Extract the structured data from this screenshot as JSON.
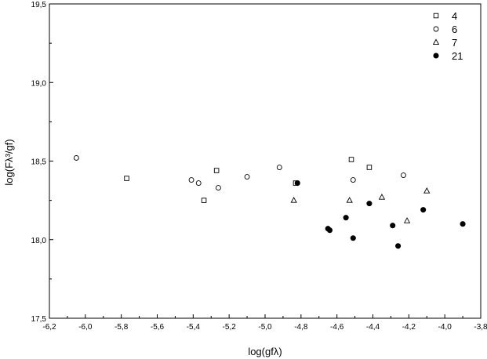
{
  "chart_data": {
    "type": "scatter",
    "xlabel": "log(gfλ)",
    "ylabel": "log(Fλ³/gf)",
    "xlim": [
      -6.2,
      -3.8
    ],
    "ylim": [
      17.5,
      19.5
    ],
    "x_ticks": [
      "-6,2",
      "-6,0",
      "-5,8",
      "-5,6",
      "-5,4",
      "-5,2",
      "-5,0",
      "-4,8",
      "-4,6",
      "-4,4",
      "-4,2",
      "-4,0",
      "-3,8"
    ],
    "y_ticks": [
      "17,5",
      "18,0",
      "18,5",
      "19,0",
      "19,5"
    ],
    "grid": false,
    "legend_position": "top-right",
    "series": [
      {
        "name": "4",
        "marker": "open-square",
        "points": [
          {
            "x": -5.77,
            "y": 18.39
          },
          {
            "x": -5.34,
            "y": 18.25
          },
          {
            "x": -5.27,
            "y": 18.44
          },
          {
            "x": -4.83,
            "y": 18.36
          },
          {
            "x": -4.52,
            "y": 18.51
          },
          {
            "x": -4.42,
            "y": 18.46
          }
        ]
      },
      {
        "name": "6",
        "marker": "open-circle",
        "points": [
          {
            "x": -6.05,
            "y": 18.52
          },
          {
            "x": -5.41,
            "y": 18.38
          },
          {
            "x": -5.37,
            "y": 18.36
          },
          {
            "x": -5.26,
            "y": 18.33
          },
          {
            "x": -5.1,
            "y": 18.4
          },
          {
            "x": -4.92,
            "y": 18.46
          },
          {
            "x": -4.51,
            "y": 18.38
          },
          {
            "x": -4.23,
            "y": 18.41
          }
        ]
      },
      {
        "name": "7",
        "marker": "open-triangle",
        "points": [
          {
            "x": -4.84,
            "y": 18.25
          },
          {
            "x": -4.53,
            "y": 18.25
          },
          {
            "x": -4.35,
            "y": 18.27
          },
          {
            "x": -4.21,
            "y": 18.12
          },
          {
            "x": -4.1,
            "y": 18.31
          }
        ]
      },
      {
        "name": "21",
        "marker": "filled-circle",
        "points": [
          {
            "x": -4.82,
            "y": 18.36
          },
          {
            "x": -4.65,
            "y": 18.07
          },
          {
            "x": -4.64,
            "y": 18.06
          },
          {
            "x": -4.55,
            "y": 18.14
          },
          {
            "x": -4.51,
            "y": 18.01
          },
          {
            "x": -4.42,
            "y": 18.23
          },
          {
            "x": -4.29,
            "y": 18.09
          },
          {
            "x": -4.26,
            "y": 17.96
          },
          {
            "x": -4.12,
            "y": 18.19
          },
          {
            "x": -3.9,
            "y": 18.1
          }
        ]
      }
    ]
  }
}
